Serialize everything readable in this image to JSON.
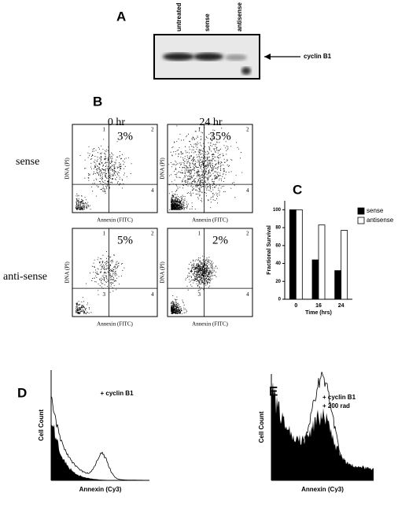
{
  "panel_a": {
    "label": "A",
    "lanes": [
      "untreated",
      "sense",
      "antisense"
    ],
    "band": "cyclin B1"
  },
  "panel_b": {
    "label": "B",
    "columns": [
      "0 hr",
      "24 hr"
    ],
    "rows": [
      "sense",
      "anti-sense"
    ],
    "y_label": "DNA (PI)",
    "x_label": "Annexin (FITC)",
    "quadrants": [
      "1",
      "2",
      "3",
      "4"
    ],
    "percentages": [
      [
        "3%",
        "35%"
      ],
      [
        "5%",
        "2%"
      ]
    ]
  },
  "chart_data": {
    "type": "bar",
    "panel": "C",
    "y_label": "Fractional Survival",
    "x_label": "Time (hrs)",
    "categories": [
      "0",
      "16",
      "24"
    ],
    "series": [
      {
        "name": "sense",
        "color": "#000000",
        "values": [
          100,
          44,
          32
        ]
      },
      {
        "name": "antisense",
        "color": "#ffffff",
        "values": [
          100,
          83,
          77
        ]
      }
    ],
    "ylim": [
      0,
      110
    ],
    "yticks": [
      0,
      20,
      40,
      60,
      80,
      100
    ]
  },
  "panel_d": {
    "label": "D",
    "y_label": "Cell Count",
    "x_label": "Annexin (Cy3)",
    "legend": [
      "+ cyclin B1"
    ]
  },
  "panel_e": {
    "label": "E",
    "y_label": "Cell Count",
    "x_label": "Annexin (Cy3)",
    "legend": [
      "+ cyclin B1",
      "+ 200 rad"
    ]
  }
}
